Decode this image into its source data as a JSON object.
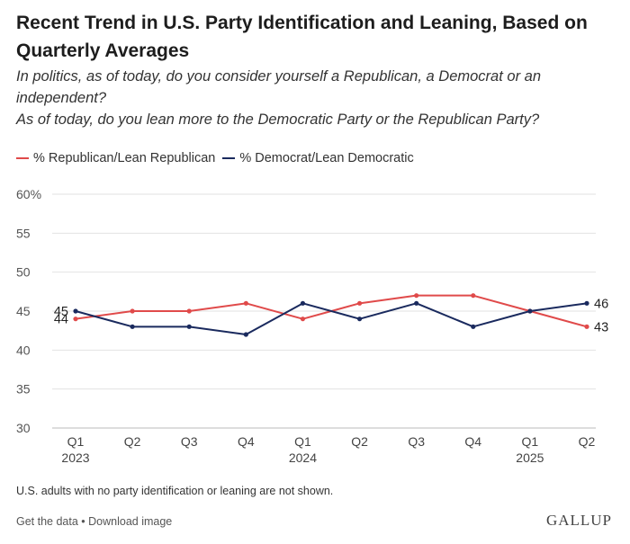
{
  "title": "Recent Trend in U.S. Party Identification and Leaning, Based on Quarterly Averages",
  "subtitle_line1": "In politics, as of today, do you consider yourself a Republican, a Democrat or an independent?",
  "subtitle_line2": "As of today, do you lean more to the Democratic Party or the Republican Party?",
  "note": "U.S. adults with no party identification or leaning are not shown.",
  "links": {
    "get_data": "Get the data",
    "separator": " • ",
    "download": "Download image"
  },
  "logo": "GALLUP",
  "chart_data": {
    "type": "line",
    "categories": [
      "Q1 2023",
      "Q2",
      "Q3",
      "Q4",
      "Q1 2024",
      "Q2",
      "Q3",
      "Q4",
      "Q1 2025",
      "Q2"
    ],
    "x_tick_labels": [
      [
        "Q1",
        "2023"
      ],
      [
        "Q2"
      ],
      [
        "Q3"
      ],
      [
        "Q4"
      ],
      [
        "Q1",
        "2024"
      ],
      [
        "Q2"
      ],
      [
        "Q3"
      ],
      [
        "Q4"
      ],
      [
        "Q1",
        "2025"
      ],
      [
        "Q2"
      ]
    ],
    "y_ticks": [
      "60%",
      "55",
      "50",
      "45",
      "40",
      "35",
      "30"
    ],
    "y_tick_values": [
      60,
      55,
      50,
      45,
      40,
      35,
      30
    ],
    "ylim": [
      30,
      60
    ],
    "grid": true,
    "legend_position": "top-left",
    "series": [
      {
        "name": "% Republican/Lean Republican",
        "color": "#e04a4a",
        "values": [
          44,
          45,
          45,
          46,
          44,
          46,
          47,
          47,
          45,
          43
        ],
        "start_label": "44",
        "end_label": "43"
      },
      {
        "name": "% Democrat/Lean Democratic",
        "color": "#1a2a5e",
        "values": [
          45,
          43,
          43,
          42,
          46,
          44,
          46,
          43,
          45,
          46
        ],
        "start_label": "45",
        "end_label": "46"
      }
    ]
  }
}
